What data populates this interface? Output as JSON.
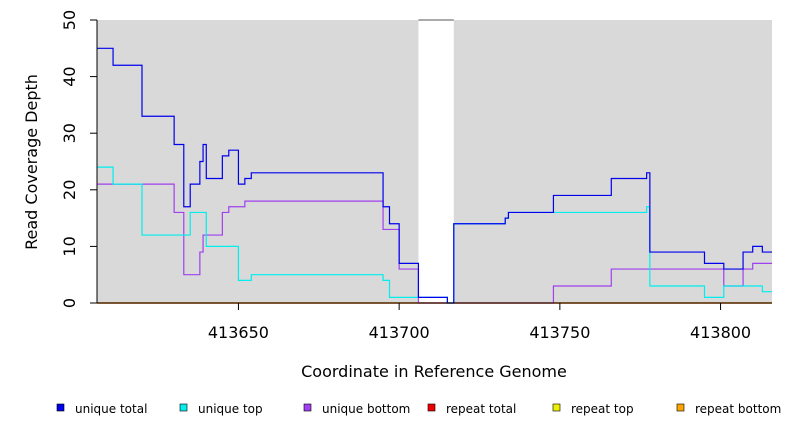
{
  "chart_data": {
    "type": "line",
    "xlabel": "Coordinate in Reference Genome",
    "ylabel": "Read Coverage Depth",
    "xlim": [
      413606,
      413816
    ],
    "ylim": [
      0,
      50
    ],
    "x_ticks": [
      413650,
      413700,
      413750,
      413800
    ],
    "x_tick_labels": [
      "413650",
      "413700",
      "413750",
      "413800"
    ],
    "y_ticks": [
      0,
      10,
      20,
      30,
      40,
      50
    ],
    "y_tick_labels": [
      "0",
      "10",
      "20",
      "30",
      "40",
      "50"
    ],
    "background_color": "#d9d9d9",
    "gap_region": [
      413706,
      413717
    ],
    "legend_position": "bottom",
    "series": [
      {
        "name": "unique total",
        "color": "#0000ee",
        "points": [
          [
            413606,
            45
          ],
          [
            413611,
            42
          ],
          [
            413620,
            33
          ],
          [
            413630,
            28
          ],
          [
            413633,
            17
          ],
          [
            413635,
            21
          ],
          [
            413638,
            25
          ],
          [
            413639,
            28
          ],
          [
            413640,
            22
          ],
          [
            413645,
            26
          ],
          [
            413647,
            27
          ],
          [
            413650,
            21
          ],
          [
            413652,
            22
          ],
          [
            413654,
            23
          ],
          [
            413695,
            17
          ],
          [
            413697,
            14
          ],
          [
            413700,
            7
          ],
          [
            413706,
            1
          ],
          [
            413715,
            0
          ],
          [
            413717,
            14
          ],
          [
            413733,
            15
          ],
          [
            413734,
            16
          ],
          [
            413748,
            19
          ],
          [
            413766,
            22
          ],
          [
            413777,
            23
          ],
          [
            413778,
            9
          ],
          [
            413795,
            7
          ],
          [
            413801,
            6
          ],
          [
            413807,
            9
          ],
          [
            413810,
            10
          ],
          [
            413813,
            9
          ]
        ]
      },
      {
        "name": "unique top",
        "color": "#00eeee",
        "points": [
          [
            413606,
            24
          ],
          [
            413611,
            21
          ],
          [
            413620,
            12
          ],
          [
            413635,
            16
          ],
          [
            413640,
            10
          ],
          [
            413650,
            4
          ],
          [
            413654,
            5
          ],
          [
            413695,
            4
          ],
          [
            413697,
            1
          ],
          [
            413706,
            1
          ],
          [
            413715,
            0
          ],
          [
            413717,
            14
          ],
          [
            413733,
            15
          ],
          [
            413734,
            16
          ],
          [
            413777,
            17
          ],
          [
            413778,
            3
          ],
          [
            413795,
            1
          ],
          [
            413801,
            3
          ],
          [
            413813,
            2
          ]
        ]
      },
      {
        "name": "unique bottom",
        "color": "#a040ee",
        "points": [
          [
            413606,
            21
          ],
          [
            413630,
            16
          ],
          [
            413633,
            5
          ],
          [
            413638,
            9
          ],
          [
            413639,
            12
          ],
          [
            413645,
            16
          ],
          [
            413647,
            17
          ],
          [
            413652,
            18
          ],
          [
            413695,
            13
          ],
          [
            413700,
            6
          ],
          [
            413706,
            0
          ],
          [
            413748,
            3
          ],
          [
            413766,
            6
          ],
          [
            413801,
            3
          ],
          [
            413807,
            6
          ],
          [
            413810,
            7
          ]
        ]
      },
      {
        "name": "repeat total",
        "color": "#ee0000",
        "points": [
          [
            413606,
            0
          ],
          [
            413816,
            0
          ]
        ]
      },
      {
        "name": "repeat top",
        "color": "#eeee00",
        "points": [
          [
            413606,
            0
          ],
          [
            413816,
            0
          ]
        ]
      },
      {
        "name": "repeat bottom",
        "color": "#ffa500",
        "points": [
          [
            413606,
            0
          ],
          [
            413816,
            0
          ]
        ]
      }
    ]
  }
}
